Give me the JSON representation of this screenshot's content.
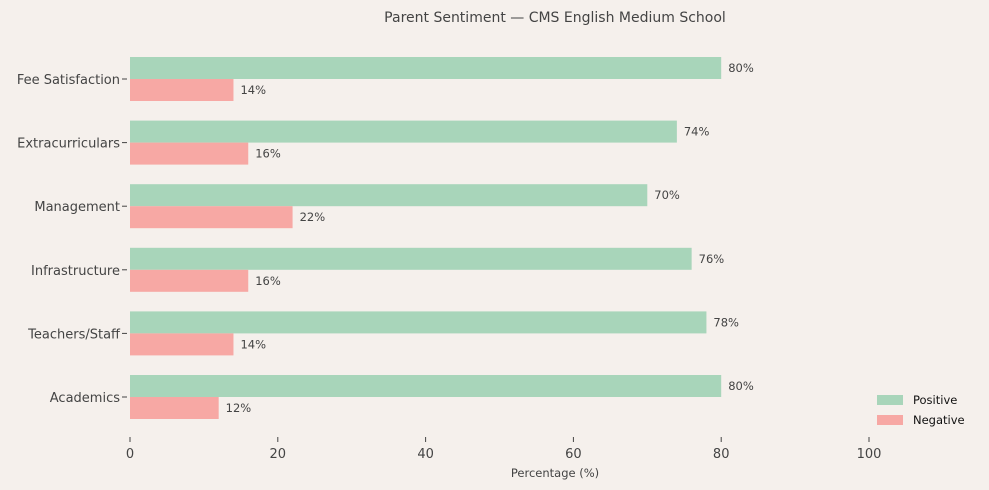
{
  "chart_data": {
    "type": "bar",
    "orientation": "horizontal",
    "title": "Parent Sentiment — CMS English Medium School",
    "xlabel": "Percentage (%)",
    "ylabel": "",
    "xlim": [
      0,
      115
    ],
    "xticks": [
      0,
      20,
      40,
      60,
      80,
      100
    ],
    "categories": [
      "Fee Satisfaction",
      "Extracurriculars",
      "Management",
      "Infrastructure",
      "Teachers/Staff",
      "Academics"
    ],
    "series": [
      {
        "name": "Positive",
        "color": "#a8d5ba",
        "values": [
          80,
          74,
          70,
          76,
          78,
          80
        ]
      },
      {
        "name": "Negative",
        "color": "#f7a8a4",
        "values": [
          14,
          16,
          22,
          16,
          14,
          12
        ]
      }
    ],
    "value_label_suffix": "%",
    "grid": false,
    "legend": "bottom-right",
    "background": "#f5f0ec"
  }
}
